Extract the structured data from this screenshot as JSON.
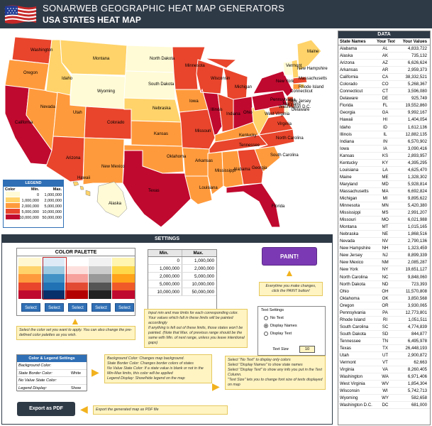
{
  "header": {
    "title": "SONARWEB GEOGRAPHIC HEAT MAP GENERATORS",
    "subtitle": "USA STATES HEAT MAP"
  },
  "colors": {
    "header_bg": "#2f3a47",
    "accent_blue": "#2f6fb5",
    "paint_purple": "#7b3ab3",
    "note_yellow": "#fff4c2",
    "arrow_orange": "#f2b21e",
    "heat": [
      "#fffbd6",
      "#ffd36a",
      "#ff9a3c",
      "#e8452c",
      "#c0092e"
    ]
  },
  "legend": {
    "title": "LEGEND",
    "headers": [
      "Color",
      "Min.",
      "Max."
    ],
    "rows": [
      {
        "min": "0",
        "max": "1,000,000",
        "color": "#fffbd6"
      },
      {
        "min": "1,000,000",
        "max": "2,000,000",
        "color": "#ffd36a"
      },
      {
        "min": "2,000,000",
        "max": "5,000,000",
        "color": "#ff9a3c"
      },
      {
        "min": "5,000,000",
        "max": "10,000,000",
        "color": "#e8452c"
      },
      {
        "min": "10,000,000",
        "max": "50,000,000",
        "color": "#c0092e"
      }
    ]
  },
  "map_labels": [
    {
      "abbr": "WA",
      "name": "Washington"
    },
    {
      "abbr": "OR",
      "name": "Oregon"
    },
    {
      "abbr": "CA",
      "name": "California"
    },
    {
      "abbr": "NV",
      "name": "Nevada"
    },
    {
      "abbr": "ID",
      "name": "Idaho"
    },
    {
      "abbr": "MT",
      "name": "Montana"
    },
    {
      "abbr": "WY",
      "name": "Wyoming"
    },
    {
      "abbr": "UT",
      "name": "Utah"
    },
    {
      "abbr": "AZ",
      "name": "Arizona"
    },
    {
      "abbr": "CO",
      "name": "Colorado"
    },
    {
      "abbr": "NM",
      "name": "New Mexico"
    },
    {
      "abbr": "ND",
      "name": "North Dakota"
    },
    {
      "abbr": "SD",
      "name": "South Dakota"
    },
    {
      "abbr": "NE",
      "name": "Nebraska"
    },
    {
      "abbr": "KS",
      "name": "Kansas"
    },
    {
      "abbr": "OK",
      "name": "Oklahoma"
    },
    {
      "abbr": "TX",
      "name": "Texas"
    },
    {
      "abbr": "MN",
      "name": "Minnesota"
    },
    {
      "abbr": "IA",
      "name": "Iowa"
    },
    {
      "abbr": "MO",
      "name": "Missouri"
    },
    {
      "abbr": "AR",
      "name": "Arkansas"
    },
    {
      "abbr": "LA",
      "name": "Louisiana"
    },
    {
      "abbr": "WI",
      "name": "Wisconsin"
    },
    {
      "abbr": "IL",
      "name": "Illinois"
    },
    {
      "abbr": "MI",
      "name": "Michigan"
    },
    {
      "abbr": "IN",
      "name": "Indiana"
    },
    {
      "abbr": "OH",
      "name": "Ohio"
    },
    {
      "abbr": "KY",
      "name": "Kentucky"
    },
    {
      "abbr": "TN",
      "name": "Tennessee"
    },
    {
      "abbr": "MS",
      "name": "Mississippi"
    },
    {
      "abbr": "AL",
      "name": "Alabama"
    },
    {
      "abbr": "GA",
      "name": "Georgia"
    },
    {
      "abbr": "FL",
      "name": "Florida"
    },
    {
      "abbr": "SC",
      "name": "South Carolina"
    },
    {
      "abbr": "NC",
      "name": "North Carolina"
    },
    {
      "abbr": "VA",
      "name": "Virginia"
    },
    {
      "abbr": "WV",
      "name": "West Virginia"
    },
    {
      "abbr": "PA",
      "name": "Pennsylvania"
    },
    {
      "abbr": "NY",
      "name": "New York"
    },
    {
      "abbr": "VT",
      "name": "Vermont"
    },
    {
      "abbr": "NH",
      "name": "New Hampshire"
    },
    {
      "abbr": "ME",
      "name": "Maine"
    },
    {
      "abbr": "MA",
      "name": "Massachusetts"
    },
    {
      "abbr": "RI",
      "name": "Rhode Island"
    },
    {
      "abbr": "CT",
      "name": "Connecticut"
    },
    {
      "abbr": "NJ",
      "name": "New Jersey"
    },
    {
      "abbr": "DE",
      "name": "Delaware"
    },
    {
      "abbr": "MD",
      "name": "Maryland"
    },
    {
      "abbr": "DC",
      "name": "Washington D.C."
    },
    {
      "abbr": "AK",
      "name": "Alaska"
    },
    {
      "abbr": "HI",
      "name": "Hawaii"
    }
  ],
  "settings": {
    "title": "SETTINGS",
    "palette_title": "COLOR PALETTE",
    "palette_columns": [
      [
        "#fff7d0",
        "#ffd36a",
        "#ff9a3c",
        "#e8452c",
        "#c0092e"
      ],
      [
        "#deebf7",
        "#9ecae1",
        "#4292c6",
        "#2171b5",
        "#08306b"
      ],
      [
        "#ffffff",
        "#fde0dd",
        "#f7a19c",
        "#e34a33",
        "#b30000"
      ],
      [
        "#f2f2f2",
        "#cccccc",
        "#999999",
        "#555555",
        "#222222"
      ],
      [
        "#fff4b0",
        "#ffd84a",
        "#ffa31a",
        "#f05a28",
        "#c0092e"
      ]
    ],
    "select_label": "Select",
    "palette_note": "Select the color set you want to apply. You can also change the pre-defined color palettes as you wish.",
    "limits_headers": [
      "Min.",
      "Max."
    ],
    "limits_rows": [
      [
        "0",
        "1,000,000"
      ],
      [
        "1,000,000",
        "2,000,000"
      ],
      [
        "2,000,000",
        "5,000,000"
      ],
      [
        "5,000,000",
        "10,000,000"
      ],
      [
        "10,000,000",
        "50,000,000"
      ]
    ],
    "limits_note_1": "Input min and max limits for each corresponding color. Your values which fall in these limits will be painted accordingly",
    "limits_note_2": "If anything is fell out of these limits, those states won't be painted. (Note that Max. of previous range should be the same with Min. of next range, unless you leave intentional gaps)",
    "paint_label": "PAINT!",
    "paint_note": "Everytime you make changes, click the PAINT button!",
    "text_settings_title": "Text Settings",
    "radio_options": [
      "No Text",
      "Display Names",
      "Display Text"
    ],
    "text_size_label": "Text Size",
    "text_size_value": "10",
    "text_note_1": "Select \"No Text\" to display only colors",
    "text_note_2": "Select \"Display Names\" to show state names",
    "text_note_3": "Select \"Display Text\" to show any info you put in the Text Column.",
    "text_note_4": "\"Text Size\" lets you to change font size of texts displayed on map",
    "color_legend_title": "Color & Legend Settings",
    "color_legend_rows": [
      {
        "label": "Background Color:",
        "value": ""
      },
      {
        "label": "State Border Color:",
        "value": "White"
      },
      {
        "label": "No Value State Color:",
        "value": ""
      },
      {
        "label": "Legend Display:",
        "value": "Show"
      }
    ],
    "cl_note_1": "Background Color: Changes map background.",
    "cl_note_2": "State Border Color: Changes border colors of states",
    "cl_note_3": "No Value State Color: If a state value is blank or not in the Min-Max limits, this color will be applied",
    "cl_note_4": "Legend Display: Show/hide legend on the map",
    "export_label": "Export as PDF",
    "export_note": "Export the generated map as PDF file"
  },
  "data_table": {
    "title": "DATA",
    "headers": [
      "State Names",
      "Your Text",
      "Your Values"
    ],
    "rows": [
      [
        "Alabama",
        "AL",
        "4,833,722"
      ],
      [
        "Alaska",
        "AK",
        "735,132"
      ],
      [
        "Arizona",
        "AZ",
        "6,626,624"
      ],
      [
        "Arkansas",
        "AR",
        "2,959,373"
      ],
      [
        "California",
        "CA",
        "38,332,521"
      ],
      [
        "Colorado",
        "CO",
        "5,268,367"
      ],
      [
        "Connecticut",
        "CT",
        "3,596,080"
      ],
      [
        "Delaware",
        "DE",
        "925,749"
      ],
      [
        "Florida",
        "FL",
        "19,552,860"
      ],
      [
        "Georgia",
        "GA",
        "9,992,167"
      ],
      [
        "Hawaii",
        "HI",
        "1,404,054"
      ],
      [
        "Idaho",
        "ID",
        "1,612,136"
      ],
      [
        "Illinois",
        "IL",
        "12,882,135"
      ],
      [
        "Indiana",
        "IN",
        "6,570,902"
      ],
      [
        "Iowa",
        "IA",
        "3,090,416"
      ],
      [
        "Kansas",
        "KS",
        "2,893,957"
      ],
      [
        "Kentucky",
        "KY",
        "4,395,295"
      ],
      [
        "Louisiana",
        "LA",
        "4,625,470"
      ],
      [
        "Maine",
        "ME",
        "1,328,302"
      ],
      [
        "Maryland",
        "MD",
        "5,928,814"
      ],
      [
        "Massachusetts",
        "MA",
        "6,692,824"
      ],
      [
        "Michigan",
        "MI",
        "9,895,622"
      ],
      [
        "Minnesota",
        "MN",
        "5,420,380"
      ],
      [
        "Mississippi",
        "MS",
        "2,991,207"
      ],
      [
        "Missouri",
        "MO",
        "6,021,988"
      ],
      [
        "Montana",
        "MT",
        "1,015,165"
      ],
      [
        "Nebraska",
        "NE",
        "1,868,516"
      ],
      [
        "Nevada",
        "NV",
        "2,790,136"
      ],
      [
        "New Hampshire",
        "NH",
        "1,323,459"
      ],
      [
        "New Jersey",
        "NJ",
        "8,899,339"
      ],
      [
        "New Mexico",
        "NM",
        "2,085,287"
      ],
      [
        "New York",
        "NY",
        "19,651,127"
      ],
      [
        "North Carolina",
        "NC",
        "9,848,060"
      ],
      [
        "North Dakota",
        "ND",
        "723,393"
      ],
      [
        "Ohio",
        "OH",
        "11,570,808"
      ],
      [
        "Oklahoma",
        "OK",
        "3,850,568"
      ],
      [
        "Oregon",
        "OR",
        "3,930,065"
      ],
      [
        "Pennsylvania",
        "PA",
        "12,773,801"
      ],
      [
        "Rhode Island",
        "RI",
        "1,051,511"
      ],
      [
        "South Carolina",
        "SC",
        "4,774,839"
      ],
      [
        "South Dakota",
        "SD",
        "844,877"
      ],
      [
        "Tennessee",
        "TN",
        "6,495,978"
      ],
      [
        "Texas",
        "TX",
        "26,448,193"
      ],
      [
        "Utah",
        "UT",
        "2,900,872"
      ],
      [
        "Vermont",
        "VT",
        "62,663"
      ],
      [
        "Virginia",
        "VA",
        "8,260,405"
      ],
      [
        "Washington",
        "WA",
        "6,971,406"
      ],
      [
        "West Virginia",
        "WV",
        "1,854,304"
      ],
      [
        "Wisconsin",
        "WI",
        "5,742,713"
      ],
      [
        "Wyoming",
        "WY",
        "582,658"
      ],
      [
        "Washington D.C.",
        "DC",
        "681,000"
      ]
    ]
  }
}
